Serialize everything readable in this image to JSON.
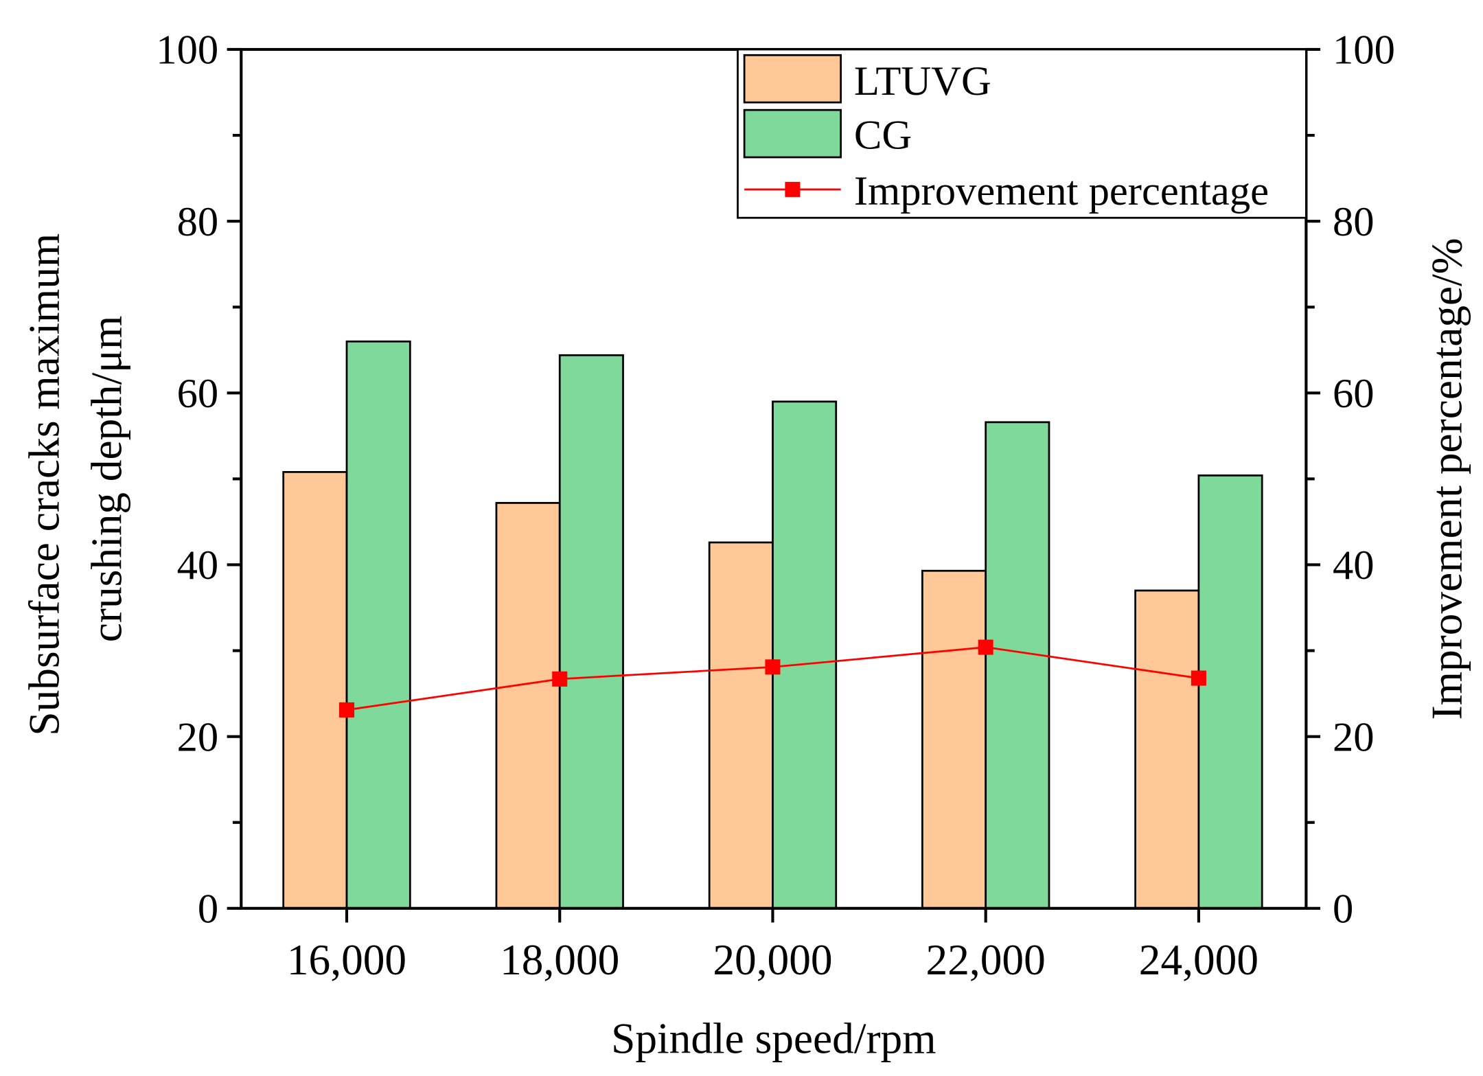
{
  "chart_data": {
    "type": "bar",
    "title": "",
    "xlabel": "Spindle speed/rpm",
    "ylabel_lines": [
      "Subsurface cracks maximum",
      "crushing depth/μm"
    ],
    "y2label": "Improvement percentage/%",
    "categories": [
      "16,000",
      "18,000",
      "20,000",
      "22,000",
      "24,000"
    ],
    "ylim": [
      0,
      100
    ],
    "y2lim": [
      0,
      100
    ],
    "yticks": [
      "0",
      "20",
      "40",
      "60",
      "80",
      "100"
    ],
    "y2ticks": [
      "0",
      "20",
      "40",
      "60",
      "80",
      "100"
    ],
    "series": [
      {
        "name": "LTUVG",
        "type": "bar",
        "axis": "left",
        "color": "#FFC896",
        "values": [
          50.8,
          47.2,
          42.6,
          39.3,
          37.0
        ]
      },
      {
        "name": "CG",
        "type": "bar",
        "axis": "left",
        "color": "#7FD99A",
        "values": [
          66.0,
          64.4,
          59.0,
          56.6,
          50.4
        ]
      },
      {
        "name": "Improvement percentage",
        "type": "line",
        "axis": "right",
        "color": "#FF0000",
        "values": [
          23.1,
          26.7,
          28.1,
          30.4,
          26.8
        ]
      }
    ],
    "legend": "top-right",
    "grid": false
  }
}
